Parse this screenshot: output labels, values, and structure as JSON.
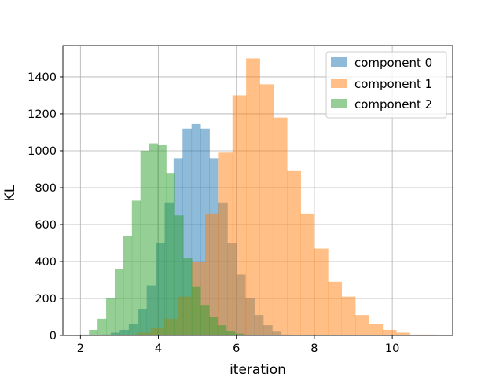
{
  "chart_data": {
    "type": "histogram",
    "xlabel": "iteration",
    "ylabel": "KL",
    "xlim": [
      1.55,
      11.55
    ],
    "ylim": [
      0,
      1570
    ],
    "xticks": [
      2,
      4,
      6,
      8,
      10
    ],
    "yticks": [
      0,
      200,
      400,
      600,
      800,
      1000,
      1200,
      1400
    ],
    "grid": true,
    "legend_position": "top-right",
    "bar_alpha": 0.5,
    "series": [
      {
        "name": "component 0",
        "color": "#1f77b4",
        "bin_start": 2.55,
        "bin_width": 0.23,
        "counts": [
          5,
          15,
          30,
          60,
          140,
          270,
          500,
          720,
          960,
          1120,
          1145,
          1120,
          960,
          720,
          500,
          330,
          200,
          110,
          55,
          20,
          5
        ]
      },
      {
        "name": "component 1",
        "color": "#ff7f0e",
        "bin_start": 3.1,
        "bin_width": 0.35,
        "counts": [
          5,
          15,
          40,
          90,
          210,
          400,
          660,
          990,
          1300,
          1500,
          1360,
          1180,
          890,
          660,
          470,
          290,
          210,
          110,
          60,
          30,
          15,
          5,
          5
        ]
      },
      {
        "name": "component 2",
        "color": "#2ca02c",
        "bin_start": 2.0,
        "bin_width": 0.22,
        "counts": [
          5,
          30,
          90,
          200,
          360,
          540,
          730,
          1000,
          1040,
          1030,
          880,
          650,
          420,
          265,
          165,
          100,
          55,
          25,
          10
        ]
      }
    ]
  }
}
